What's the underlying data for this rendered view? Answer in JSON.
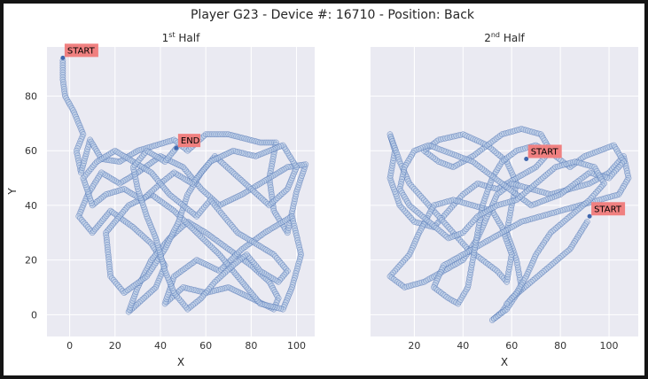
{
  "figure": {
    "title": "Player G23 - Device #: 16710 - Position: Back"
  },
  "colors": {
    "plot_bg": "#eaeaf2",
    "grid": "#ffffff",
    "track_light": "#b9cce6",
    "track_dark": "#3f67ad",
    "annotation_bg": "#f08080"
  },
  "chart_data": [
    {
      "type": "scatter",
      "title_base": "1",
      "title_sup": "st",
      "title_rest": " Half",
      "xlabel": "X",
      "ylabel": "Y",
      "xlim": [
        -10,
        108
      ],
      "ylim": [
        -8,
        98
      ],
      "xticks": [
        0,
        20,
        40,
        60,
        80,
        100
      ],
      "yticks": [
        0,
        20,
        40,
        60,
        80
      ],
      "grid": true,
      "annotations": [
        {
          "text": "START",
          "x": -3,
          "y": 94
        },
        {
          "text": "END",
          "x": 47,
          "y": 61
        }
      ],
      "path": [
        [
          -3,
          93
        ],
        [
          -3,
          86
        ],
        [
          -2,
          80
        ],
        [
          2,
          74
        ],
        [
          6,
          66
        ],
        [
          3,
          60
        ],
        [
          5,
          52
        ],
        [
          9,
          64
        ],
        [
          14,
          57
        ],
        [
          22,
          56
        ],
        [
          30,
          60
        ],
        [
          38,
          62
        ],
        [
          46,
          64
        ],
        [
          52,
          60
        ],
        [
          60,
          66
        ],
        [
          70,
          66
        ],
        [
          84,
          63
        ],
        [
          91,
          63
        ],
        [
          88,
          50
        ],
        [
          90,
          38
        ],
        [
          96,
          30
        ],
        [
          100,
          45
        ],
        [
          104,
          55
        ],
        [
          96,
          54
        ],
        [
          88,
          50
        ],
        [
          76,
          44
        ],
        [
          66,
          40
        ],
        [
          58,
          46
        ],
        [
          50,
          54
        ],
        [
          40,
          58
        ],
        [
          30,
          52
        ],
        [
          22,
          48
        ],
        [
          14,
          52
        ],
        [
          8,
          44
        ],
        [
          4,
          36
        ],
        [
          10,
          30
        ],
        [
          18,
          38
        ],
        [
          28,
          32
        ],
        [
          36,
          26
        ],
        [
          42,
          18
        ],
        [
          38,
          10
        ],
        [
          30,
          4
        ],
        [
          26,
          1
        ],
        [
          30,
          10
        ],
        [
          36,
          20
        ],
        [
          44,
          28
        ],
        [
          52,
          34
        ],
        [
          60,
          30
        ],
        [
          70,
          24
        ],
        [
          80,
          18
        ],
        [
          88,
          12
        ],
        [
          92,
          6
        ],
        [
          90,
          2
        ],
        [
          80,
          6
        ],
        [
          70,
          10
        ],
        [
          60,
          8
        ],
        [
          50,
          10
        ],
        [
          42,
          4
        ],
        [
          46,
          14
        ],
        [
          56,
          20
        ],
        [
          66,
          16
        ],
        [
          76,
          24
        ],
        [
          86,
          30
        ],
        [
          98,
          36
        ],
        [
          102,
          22
        ],
        [
          98,
          10
        ],
        [
          94,
          2
        ],
        [
          84,
          4
        ],
        [
          76,
          12
        ],
        [
          66,
          22
        ],
        [
          56,
          30
        ],
        [
          46,
          38
        ],
        [
          36,
          44
        ],
        [
          26,
          40
        ],
        [
          16,
          30
        ],
        [
          18,
          14
        ],
        [
          24,
          8
        ],
        [
          34,
          14
        ],
        [
          42,
          24
        ],
        [
          48,
          34
        ],
        [
          52,
          44
        ],
        [
          58,
          52
        ],
        [
          64,
          58
        ],
        [
          72,
          52
        ],
        [
          80,
          46
        ],
        [
          88,
          40
        ],
        [
          96,
          46
        ],
        [
          100,
          54
        ],
        [
          94,
          62
        ],
        [
          82,
          58
        ],
        [
          72,
          60
        ],
        [
          62,
          56
        ],
        [
          54,
          48
        ],
        [
          46,
          52
        ],
        [
          40,
          48
        ],
        [
          32,
          42
        ],
        [
          24,
          46
        ],
        [
          16,
          44
        ],
        [
          10,
          40
        ],
        [
          6,
          50
        ],
        [
          12,
          56
        ],
        [
          20,
          60
        ],
        [
          28,
          56
        ],
        [
          36,
          52
        ],
        [
          44,
          44
        ],
        [
          50,
          40
        ],
        [
          56,
          36
        ],
        [
          62,
          42
        ],
        [
          68,
          36
        ],
        [
          74,
          30
        ],
        [
          82,
          26
        ],
        [
          90,
          22
        ],
        [
          96,
          16
        ],
        [
          92,
          12
        ],
        [
          84,
          16
        ],
        [
          78,
          22
        ],
        [
          72,
          18
        ],
        [
          64,
          12
        ],
        [
          58,
          6
        ],
        [
          52,
          2
        ],
        [
          46,
          8
        ],
        [
          42,
          16
        ],
        [
          38,
          28
        ],
        [
          34,
          36
        ],
        [
          30,
          46
        ],
        [
          28,
          54
        ],
        [
          34,
          60
        ],
        [
          42,
          56
        ],
        [
          47,
          61
        ]
      ]
    },
    {
      "type": "scatter",
      "title_base": "2",
      "title_sup": "nd",
      "title_rest": " Half",
      "xlabel": "X",
      "ylabel": "",
      "xlim": [
        2,
        112
      ],
      "ylim": [
        -8,
        98
      ],
      "xticks": [
        20,
        40,
        60,
        80,
        100
      ],
      "yticks": [
        0,
        20,
        40,
        60,
        80
      ],
      "grid": true,
      "annotations": [
        {
          "text": "START",
          "x": 66,
          "y": 57
        },
        {
          "text": "START",
          "x": 92,
          "y": 36
        }
      ],
      "path": [
        [
          91,
          34
        ],
        [
          84,
          24
        ],
        [
          76,
          18
        ],
        [
          68,
          12
        ],
        [
          60,
          6
        ],
        [
          56,
          1
        ],
        [
          52,
          -2
        ],
        [
          58,
          2
        ],
        [
          64,
          10
        ],
        [
          62,
          20
        ],
        [
          58,
          30
        ],
        [
          60,
          40
        ],
        [
          62,
          48
        ],
        [
          58,
          56
        ],
        [
          50,
          62
        ],
        [
          44,
          58
        ],
        [
          36,
          54
        ],
        [
          30,
          56
        ],
        [
          24,
          60
        ],
        [
          30,
          64
        ],
        [
          40,
          66
        ],
        [
          50,
          62
        ],
        [
          56,
          66
        ],
        [
          64,
          68
        ],
        [
          72,
          66
        ],
        [
          76,
          60
        ],
        [
          70,
          54
        ],
        [
          62,
          50
        ],
        [
          54,
          46
        ],
        [
          46,
          48
        ],
        [
          40,
          44
        ],
        [
          34,
          38
        ],
        [
          28,
          32
        ],
        [
          20,
          34
        ],
        [
          14,
          40
        ],
        [
          10,
          50
        ],
        [
          12,
          60
        ],
        [
          10,
          66
        ],
        [
          14,
          56
        ],
        [
          18,
          48
        ],
        [
          24,
          42
        ],
        [
          30,
          36
        ],
        [
          36,
          30
        ],
        [
          42,
          24
        ],
        [
          48,
          20
        ],
        [
          54,
          16
        ],
        [
          58,
          12
        ],
        [
          60,
          22
        ],
        [
          56,
          32
        ],
        [
          52,
          38
        ],
        [
          44,
          40
        ],
        [
          36,
          42
        ],
        [
          28,
          40
        ],
        [
          22,
          30
        ],
        [
          18,
          22
        ],
        [
          14,
          18
        ],
        [
          10,
          14
        ],
        [
          16,
          10
        ],
        [
          24,
          12
        ],
        [
          32,
          16
        ],
        [
          40,
          20
        ],
        [
          46,
          28
        ],
        [
          50,
          36
        ],
        [
          54,
          44
        ],
        [
          60,
          48
        ],
        [
          68,
          46
        ],
        [
          76,
          44
        ],
        [
          84,
          46
        ],
        [
          92,
          48
        ],
        [
          100,
          52
        ],
        [
          106,
          58
        ],
        [
          108,
          50
        ],
        [
          104,
          44
        ],
        [
          96,
          42
        ],
        [
          88,
          40
        ],
        [
          80,
          38
        ],
        [
          72,
          36
        ],
        [
          64,
          34
        ],
        [
          56,
          30
        ],
        [
          48,
          26
        ],
        [
          40,
          22
        ],
        [
          32,
          18
        ],
        [
          28,
          10
        ],
        [
          34,
          6
        ],
        [
          38,
          4
        ],
        [
          42,
          10
        ],
        [
          44,
          20
        ],
        [
          46,
          30
        ],
        [
          48,
          40
        ],
        [
          52,
          50
        ],
        [
          56,
          56
        ],
        [
          62,
          60
        ],
        [
          70,
          62
        ],
        [
          78,
          58
        ],
        [
          84,
          54
        ],
        [
          90,
          58
        ],
        [
          96,
          60
        ],
        [
          102,
          62
        ],
        [
          106,
          56
        ],
        [
          100,
          50
        ],
        [
          92,
          52
        ],
        [
          86,
          48
        ],
        [
          80,
          44
        ],
        [
          74,
          42
        ],
        [
          68,
          40
        ],
        [
          62,
          44
        ],
        [
          56,
          48
        ],
        [
          50,
          52
        ],
        [
          44,
          56
        ],
        [
          38,
          58
        ],
        [
          32,
          60
        ],
        [
          26,
          62
        ],
        [
          20,
          60
        ],
        [
          16,
          54
        ],
        [
          14,
          46
        ],
        [
          18,
          40
        ],
        [
          26,
          34
        ],
        [
          34,
          28
        ],
        [
          40,
          30
        ],
        [
          46,
          36
        ],
        [
          54,
          40
        ],
        [
          62,
          42
        ],
        [
          70,
          48
        ],
        [
          78,
          54
        ],
        [
          86,
          56
        ],
        [
          94,
          54
        ],
        [
          98,
          48
        ],
        [
          92,
          42
        ],
        [
          84,
          36
        ],
        [
          76,
          30
        ],
        [
          70,
          22
        ],
        [
          66,
          14
        ],
        [
          62,
          8
        ],
        [
          58,
          4
        ]
      ]
    }
  ]
}
